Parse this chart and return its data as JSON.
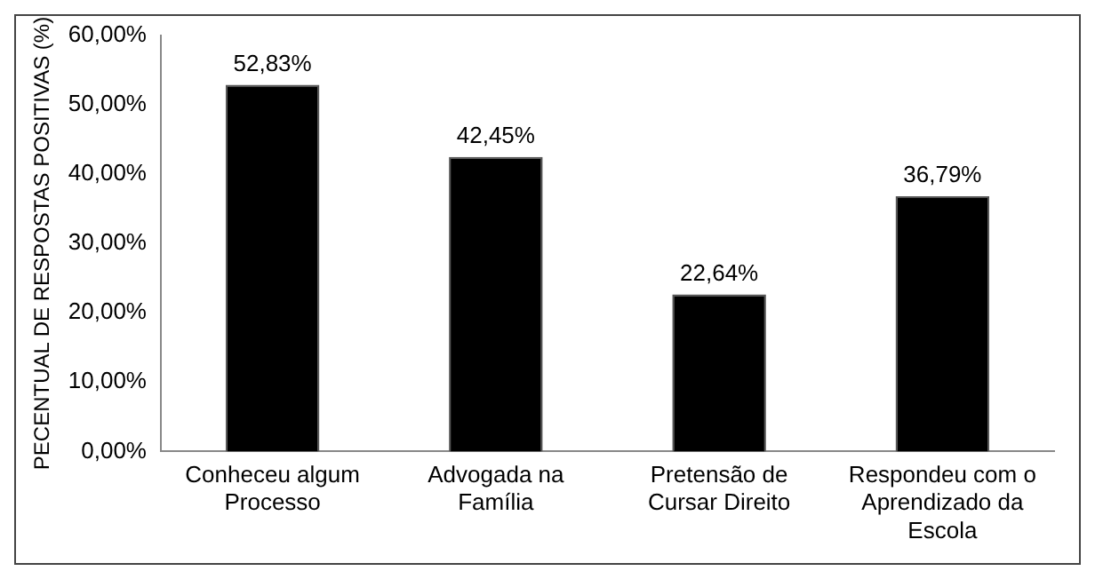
{
  "chart_data": {
    "type": "bar",
    "ylabel": "PECENTUAL DE RESPOSTAS POSITIVAS (%)",
    "categories": [
      "Conheceu algum Processo",
      "Advogada na Família",
      "Pretensão de Cursar Direito",
      "Respondeu com o Aprendizado da Escola"
    ],
    "values": [
      52.83,
      42.45,
      22.64,
      36.79
    ],
    "value_labels": [
      "52,83%",
      "42,45%",
      "22,64%",
      "36,79%"
    ],
    "color": "#000000",
    "ylim": [
      0,
      60
    ],
    "yticks": [
      {
        "value": 0,
        "label": "0,00%"
      },
      {
        "value": 10,
        "label": "10,00%"
      },
      {
        "value": 20,
        "label": "20,00%"
      },
      {
        "value": 30,
        "label": "30,00%"
      },
      {
        "value": 40,
        "label": "40,00%"
      },
      {
        "value": 50,
        "label": "50,00%"
      },
      {
        "value": 60,
        "label": "60,00%"
      }
    ],
    "grid": false,
    "legend": false
  }
}
